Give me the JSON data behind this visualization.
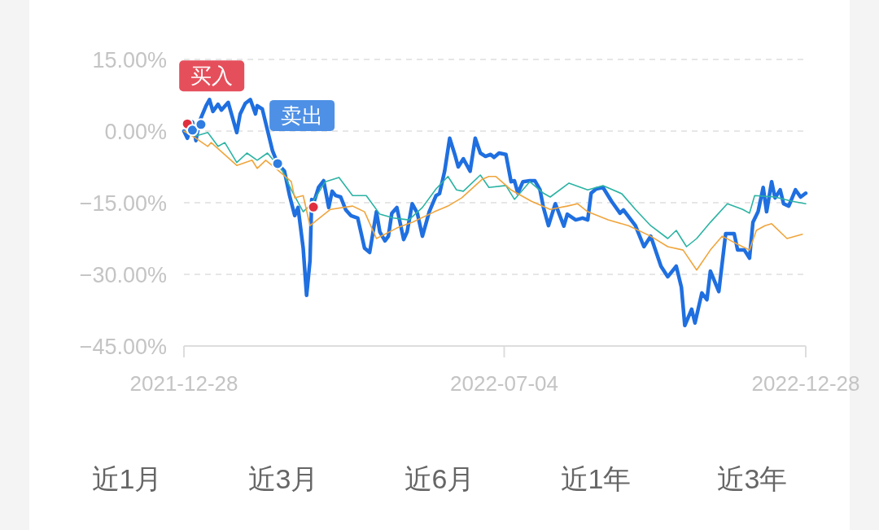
{
  "chart_data": {
    "type": "line",
    "xlim": [
      "2021-12-28",
      "2022-12-28"
    ],
    "ylim": [
      -45,
      15
    ],
    "xticks": [
      "2021-12-28",
      "2022-07-04",
      "2022-12-28"
    ],
    "yticks": [
      {
        "value": 15,
        "label": "15.00%"
      },
      {
        "value": 0,
        "label": "0.00%"
      },
      {
        "value": -15,
        "label": "−15.00%"
      },
      {
        "value": -30,
        "label": "−30.00%"
      },
      {
        "value": -45,
        "label": "−45.00%"
      }
    ],
    "grid": "y",
    "x": [
      "2021-12-28",
      "2021-12-30",
      "2022-01-02",
      "2022-01-04",
      "2022-01-06",
      "2022-01-10",
      "2022-01-12",
      "2022-01-14",
      "2022-01-17",
      "2022-01-19",
      "2022-01-23",
      "2022-01-28",
      "2022-01-30",
      "2022-02-02",
      "2022-02-05",
      "2022-02-08",
      "2022-02-09",
      "2022-02-12",
      "2022-02-15",
      "2022-02-18",
      "2022-02-21",
      "2022-02-25",
      "2022-02-28",
      "2022-03-03",
      "2022-03-05",
      "2022-03-08",
      "2022-03-10",
      "2022-03-12",
      "2022-03-13",
      "2022-03-14",
      "2022-03-17",
      "2022-03-20",
      "2022-03-23",
      "2022-03-25",
      "2022-03-27",
      "2022-03-30",
      "2022-04-02",
      "2022-04-05",
      "2022-04-09",
      "2022-04-13",
      "2022-04-16",
      "2022-04-20",
      "2022-04-22",
      "2022-04-25",
      "2022-04-27",
      "2022-04-29",
      "2022-05-02",
      "2022-05-06",
      "2022-05-08",
      "2022-05-11",
      "2022-05-14",
      "2022-05-17",
      "2022-05-21",
      "2022-05-25",
      "2022-05-27",
      "2022-05-30",
      "2022-06-02",
      "2022-06-05",
      "2022-06-07",
      "2022-06-10",
      "2022-06-14",
      "2022-06-17",
      "2022-06-20",
      "2022-06-23",
      "2022-06-26",
      "2022-06-28",
      "2022-07-01",
      "2022-07-05",
      "2022-07-08",
      "2022-07-10",
      "2022-07-12",
      "2022-07-15",
      "2022-07-19",
      "2022-07-22",
      "2022-07-25",
      "2022-07-27",
      "2022-07-30",
      "2022-08-03",
      "2022-08-08",
      "2022-08-10",
      "2022-08-15",
      "2022-08-19",
      "2022-08-22",
      "2022-08-24",
      "2022-08-27",
      "2022-08-31",
      "2022-09-05",
      "2022-09-10",
      "2022-09-12",
      "2022-09-19",
      "2022-09-24",
      "2022-09-28",
      "2022-10-04",
      "2022-10-08",
      "2022-10-13",
      "2022-10-16",
      "2022-10-18",
      "2022-10-22",
      "2022-10-24",
      "2022-10-28",
      "2022-10-31",
      "2022-11-02",
      "2022-11-07",
      "2022-11-11",
      "2022-11-16",
      "2022-11-18",
      "2022-11-22",
      "2022-11-25",
      "2022-11-27",
      "2022-11-30",
      "2022-12-03",
      "2022-12-05",
      "2022-12-08",
      "2022-12-10",
      "2022-12-13",
      "2022-12-15",
      "2022-12-18",
      "2022-12-22",
      "2022-12-25",
      "2022-12-28"
    ],
    "series": [
      {
        "color": "#2bb3a3",
        "x": [
          "2021-12-28",
          "2022-01-04",
          "2022-01-11",
          "2022-01-17",
          "2022-01-21",
          "2022-01-28",
          "2022-02-03",
          "2022-02-09",
          "2022-02-15",
          "2022-02-24",
          "2022-03-01",
          "2022-03-08",
          "2022-03-13",
          "2022-03-21",
          "2022-03-29",
          "2022-04-06",
          "2022-04-14",
          "2022-04-22",
          "2022-04-30",
          "2022-05-09",
          "2022-05-17",
          "2022-05-25",
          "2022-06-01",
          "2022-06-06",
          "2022-06-10",
          "2022-06-20",
          "2022-06-25",
          "2022-07-05",
          "2022-07-10",
          "2022-07-19",
          "2022-07-27",
          "2022-07-31",
          "2022-08-11",
          "2022-08-22",
          "2022-08-31",
          "2022-09-11",
          "2022-09-19",
          "2022-09-28",
          "2022-10-08",
          "2022-10-13",
          "2022-10-19",
          "2022-10-25",
          "2022-11-02",
          "2022-11-12",
          "2022-11-21",
          "2022-11-25",
          "2022-11-28",
          "2022-12-10",
          "2022-12-20",
          "2022-12-28"
        ],
        "values": [
          0.0,
          -1.0,
          -0.3,
          -3.2,
          -2.4,
          -6.6,
          -4.6,
          -6.1,
          -4.6,
          -8.4,
          -12.3,
          -16.9,
          -15.2,
          -10.6,
          -9.7,
          -13.5,
          -13.5,
          -17.4,
          -18.2,
          -18.6,
          -16.0,
          -12.1,
          -9.5,
          -12.3,
          -12.6,
          -9.2,
          -11.8,
          -11.4,
          -14.3,
          -10.6,
          -13.0,
          -13.8,
          -10.9,
          -12.3,
          -11.4,
          -13.1,
          -16.4,
          -19.8,
          -22.5,
          -20.8,
          -24.2,
          -22.5,
          -19.1,
          -15.2,
          -16.4,
          -17.2,
          -13.5,
          -13.8,
          -14.7,
          -15.2
        ]
      },
      {
        "color": "#f0a53c",
        "x": [
          "2021-12-28",
          "2022-01-04",
          "2022-01-11",
          "2022-01-13",
          "2022-01-28",
          "2022-02-06",
          "2022-02-09",
          "2022-02-14",
          "2022-02-20",
          "2022-03-01",
          "2022-03-03",
          "2022-03-08",
          "2022-03-12",
          "2022-03-24",
          "2022-04-06",
          "2022-04-13",
          "2022-04-20",
          "2022-05-02",
          "2022-05-11",
          "2022-05-24",
          "2022-06-01",
          "2022-06-09",
          "2022-06-21",
          "2022-06-25",
          "2022-06-29",
          "2022-07-08",
          "2022-07-20",
          "2022-07-31",
          "2022-08-10",
          "2022-08-16",
          "2022-08-22",
          "2022-09-03",
          "2022-09-15",
          "2022-09-28",
          "2022-10-08",
          "2022-10-17",
          "2022-10-25",
          "2022-11-02",
          "2022-11-09",
          "2022-11-18",
          "2022-11-25",
          "2022-11-29",
          "2022-12-04",
          "2022-12-08",
          "2022-12-17",
          "2022-12-26"
        ],
        "values": [
          0.0,
          -1.5,
          -3.2,
          -2.4,
          -7.2,
          -6.1,
          -7.8,
          -6.1,
          -7.8,
          -10.6,
          -14.0,
          -13.5,
          -19.8,
          -16.4,
          -15.7,
          -16.9,
          -22.5,
          -20.3,
          -19.1,
          -16.9,
          -15.7,
          -14.0,
          -10.1,
          -9.5,
          -9.5,
          -12.3,
          -14.7,
          -16.4,
          -15.7,
          -15.2,
          -16.9,
          -18.6,
          -19.8,
          -22.0,
          -24.2,
          -24.9,
          -29.1,
          -24.9,
          -22.0,
          -23.7,
          -24.9,
          -20.8,
          -19.8,
          -19.4,
          -22.5,
          -21.6
        ]
      },
      {
        "type": "line",
        "color": "#1f6fe0",
        "values": [
          0.0,
          -1.5,
          1.9,
          -2.0,
          1.9,
          5.3,
          6.6,
          4.1,
          5.6,
          4.4,
          6.0,
          -0.3,
          3.6,
          5.8,
          6.6,
          3.6,
          5.3,
          4.6,
          0.2,
          -4.1,
          -6.8,
          -8.4,
          -13.5,
          -17.7,
          -16.0,
          -24.5,
          -34.4,
          -27.1,
          -14.3,
          -15.2,
          -11.8,
          -10.4,
          -16.0,
          -12.6,
          -13.5,
          -13.8,
          -16.5,
          -17.7,
          -18.2,
          -24.5,
          -25.4,
          -16.9,
          -21.1,
          -23.0,
          -22.0,
          -17.2,
          -16.0,
          -22.7,
          -21.1,
          -15.2,
          -17.2,
          -22.0,
          -16.9,
          -13.5,
          -13.1,
          -8.4,
          -1.5,
          -4.9,
          -7.5,
          -5.8,
          -8.4,
          -1.5,
          -4.6,
          -5.3,
          -4.9,
          -5.5,
          -4.6,
          -4.9,
          -10.6,
          -10.4,
          -13.0,
          -10.6,
          -10.4,
          -10.4,
          -12.3,
          -16.0,
          -19.8,
          -15.2,
          -19.9,
          -17.4,
          -18.6,
          -18.2,
          -18.6,
          -13.0,
          -12.1,
          -11.8,
          -14.7,
          -17.2,
          -16.5,
          -19.8,
          -24.2,
          -22.0,
          -28.3,
          -30.5,
          -28.3,
          -32.7,
          -40.7,
          -37.3,
          -40.2,
          -33.9,
          -35.3,
          -29.3,
          -33.6,
          -21.5,
          -21.5,
          -24.9,
          -24.9,
          -26.6,
          -19.1,
          -16.9,
          -11.8,
          -16.9,
          -10.6,
          -14.0,
          -12.3,
          -15.2,
          -15.7,
          -12.3,
          -13.8,
          -13.0
        ]
      },
      {
        "type": "scatter",
        "marker": "circle",
        "color": "#e0303e",
        "x": [
          "2021-12-30",
          "2022-03-14"
        ],
        "values": [
          1.5,
          -15.9
        ]
      },
      {
        "type": "scatter",
        "marker": "circle",
        "color": "#2f7de1",
        "x": [
          "2022-01-02",
          "2022-01-07",
          "2022-02-21"
        ],
        "values": [
          0.2,
          1.4,
          -6.8
        ]
      }
    ],
    "annotations": [
      {
        "text": "买入",
        "x": "2021-12-30",
        "y": 1.5
      },
      {
        "text": "卖出",
        "x": "2022-02-21",
        "y": -6.8
      },
      "近1月",
      "近3月",
      "近6月",
      "近1年",
      "近3年"
    ]
  }
}
